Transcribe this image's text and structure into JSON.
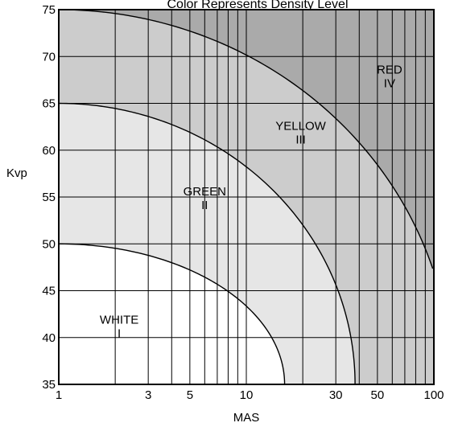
{
  "chart_data": {
    "type": "area",
    "title": "Color Represents Density Level",
    "xlabel": "MAS",
    "ylabel": "Kvp",
    "x_scale": "log",
    "xlim": [
      1,
      100
    ],
    "ylim": [
      35,
      75
    ],
    "x_ticks": [
      1,
      3,
      5,
      10,
      30,
      50,
      100
    ],
    "x_tick_labels": [
      "1",
      "3",
      "5",
      "10",
      "30",
      "50",
      "100"
    ],
    "x_gridlines": [
      1,
      2,
      3,
      4,
      5,
      6,
      7,
      8,
      9,
      10,
      20,
      30,
      40,
      50,
      60,
      70,
      80,
      90,
      100
    ],
    "y_ticks": [
      35,
      40,
      45,
      50,
      55,
      60,
      65,
      70,
      75
    ],
    "y_tick_labels": [
      "35",
      "40",
      "45",
      "50",
      "55",
      "60",
      "65",
      "70",
      "75"
    ],
    "grid": true,
    "regions": [
      {
        "color_name": "WHITE",
        "level": "I",
        "fill": "#ffffff",
        "label_at": {
          "x": 2.1,
          "y": 40.8
        }
      },
      {
        "color_name": "GREEN",
        "level": "II",
        "fill": "#e6e6e6",
        "label_at": {
          "x": 6.0,
          "y": 54.5
        }
      },
      {
        "color_name": "YELLOW",
        "level": "III",
        "fill": "#cccccc",
        "label_at": {
          "x": 19.5,
          "y": 61.5
        }
      },
      {
        "color_name": "RED",
        "level": "IV",
        "fill": "#aaaaaa",
        "label_at": {
          "x": 58.0,
          "y": 67.5
        }
      }
    ],
    "boundaries": [
      {
        "name": "WHITE/GREEN",
        "y_at_xmin": 50,
        "x_at_ymin": 16.0,
        "from_region": 0,
        "to_region": 1
      },
      {
        "name": "GREEN/YELLOW",
        "y_at_xmin": 65,
        "x_at_ymin": 38.0,
        "from_region": 1,
        "to_region": 2
      },
      {
        "name": "YELLOW/RED",
        "y_at_xmin": 75,
        "x_at_ymax": 100,
        "y_at_xmax": 47.0,
        "from_region": 2,
        "to_region": 3
      }
    ]
  }
}
